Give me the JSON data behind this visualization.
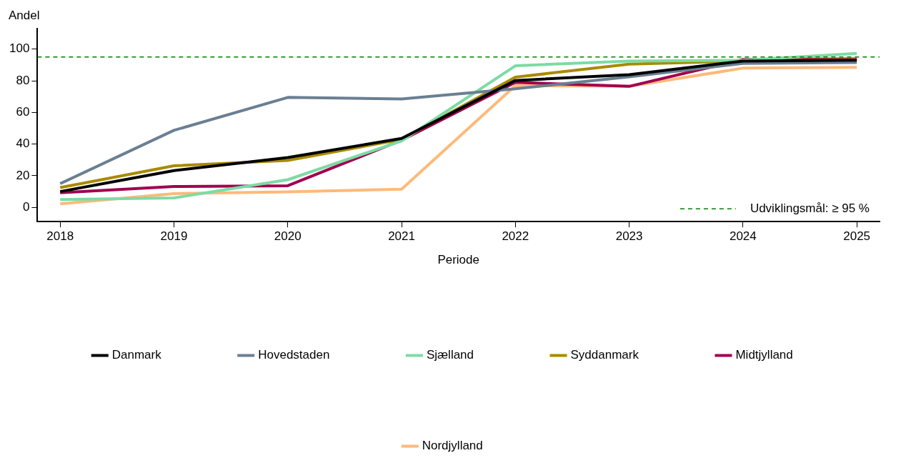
{
  "chart_data": {
    "type": "line",
    "xlabel": "Periode",
    "ylabel": "Andel",
    "x": [
      2018,
      2019,
      2020,
      2021,
      2022,
      2023,
      2024,
      2025
    ],
    "xlim": [
      2017.8,
      2025.2
    ],
    "xticks": [
      2018,
      2019,
      2020,
      2021,
      2022,
      2023,
      2024,
      2025
    ],
    "ylim": [
      -9,
      113
    ],
    "yticks": [
      0,
      20,
      40,
      60,
      80,
      100
    ],
    "grid": false,
    "legend": "bottom",
    "marker": "none",
    "line_style": "solid",
    "ref_lines": [
      {
        "axis": "y",
        "value": 95,
        "label": "Udviklingsmål: ≥ 95 %",
        "color": "#008000",
        "line_style": "dashed"
      }
    ],
    "series": [
      {
        "name": "Danmark",
        "color": "#000000",
        "values": [
          10,
          23.3,
          31.5,
          43.6,
          80.2,
          83.9,
          92.5,
          93
        ]
      },
      {
        "name": "Hovedstaden",
        "color": "#6a7f92",
        "values": [
          15,
          48.7,
          69.5,
          68.5,
          75,
          82.5,
          91,
          91.5
        ]
      },
      {
        "name": "Sjælland",
        "color": "#7ddba4",
        "values": [
          5,
          6,
          17.5,
          42,
          89.5,
          92.5,
          93,
          97.3
        ]
      },
      {
        "name": "Syddanmark",
        "color": "#a88a00",
        "values": [
          12.5,
          26.3,
          29.7,
          43,
          82.3,
          90.5,
          92.5,
          93.5
        ]
      },
      {
        "name": "Midtjylland",
        "color": "#a0004f",
        "values": [
          9.3,
          13.2,
          13.7,
          42.5,
          79,
          76.5,
          93.5,
          93.8
        ]
      },
      {
        "name": "Nordjylland",
        "color": "#ffb97a",
        "values": [
          2.3,
          8.7,
          9.8,
          11.5,
          77,
          76.5,
          88,
          88.5
        ]
      }
    ]
  }
}
